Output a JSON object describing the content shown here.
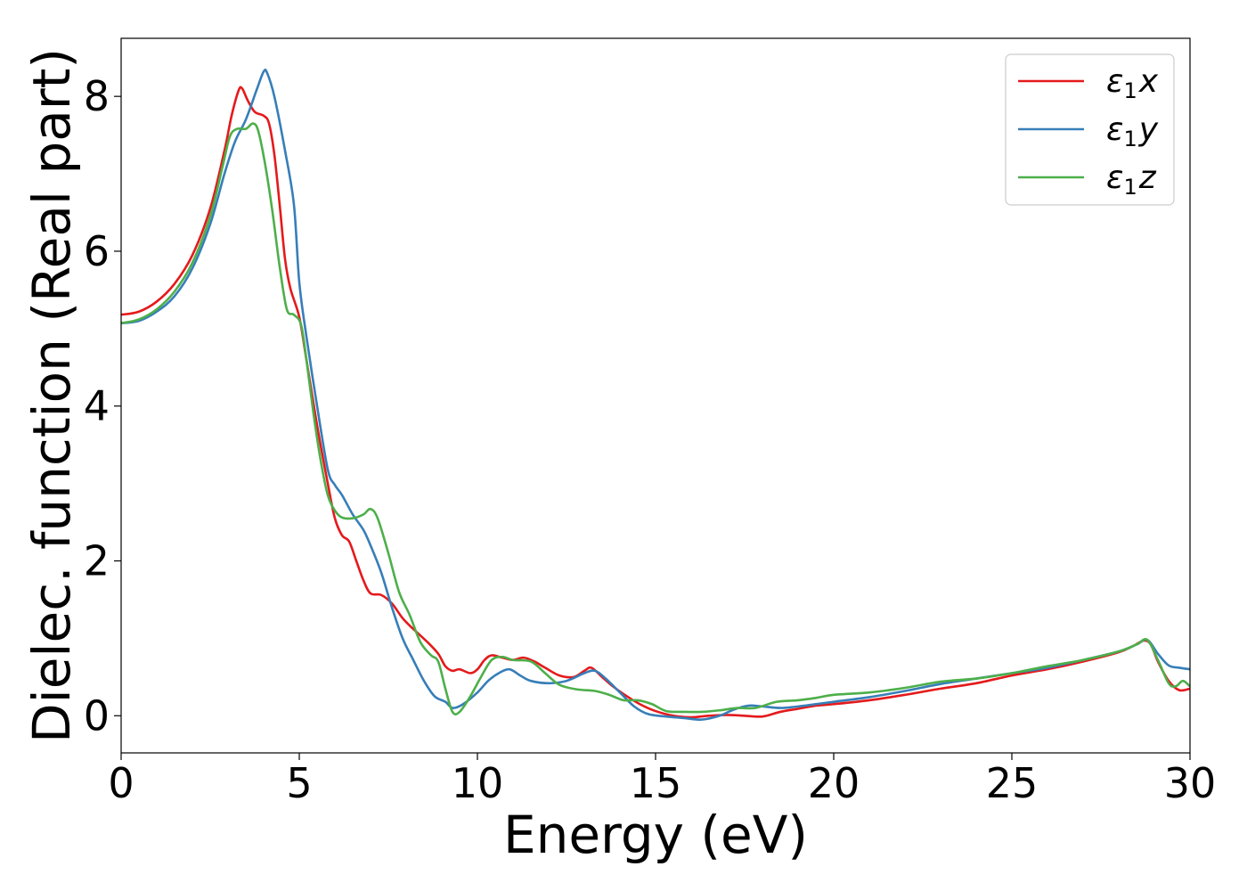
{
  "chart_data": {
    "type": "line",
    "title": "",
    "xlabel": "Energy (eV)",
    "ylabel": "Dielec. function (Real part)",
    "xlim": [
      0,
      30
    ],
    "ylim": [
      -0.48,
      8.75
    ],
    "xticks": [
      0,
      5,
      10,
      15,
      20,
      25,
      30
    ],
    "xtick_labels": [
      "0",
      "5",
      "10",
      "15",
      "20",
      "25",
      "30"
    ],
    "yticks": [
      0,
      2,
      4,
      6,
      8
    ],
    "ytick_labels": [
      "0",
      "2",
      "4",
      "6",
      "8"
    ],
    "grid": false,
    "legend_position": "top-right",
    "series": [
      {
        "name": "ε₁x",
        "legend_base": "ε",
        "legend_sub": "1",
        "legend_var": "x",
        "color": "#e41a1c",
        "points": [
          [
            0,
            5.18
          ],
          [
            0.5,
            5.22
          ],
          [
            1,
            5.35
          ],
          [
            1.5,
            5.58
          ],
          [
            2,
            5.95
          ],
          [
            2.5,
            6.55
          ],
          [
            2.9,
            7.3
          ],
          [
            3.1,
            7.75
          ],
          [
            3.3,
            8.08
          ],
          [
            3.4,
            8.1
          ],
          [
            3.55,
            7.95
          ],
          [
            3.75,
            7.8
          ],
          [
            4,
            7.75
          ],
          [
            4.15,
            7.65
          ],
          [
            4.3,
            7.25
          ],
          [
            4.45,
            6.6
          ],
          [
            4.6,
            5.9
          ],
          [
            4.75,
            5.52
          ],
          [
            5,
            5.15
          ],
          [
            5.2,
            4.6
          ],
          [
            5.5,
            3.75
          ],
          [
            5.8,
            3.0
          ],
          [
            6,
            2.55
          ],
          [
            6.2,
            2.33
          ],
          [
            6.4,
            2.25
          ],
          [
            6.6,
            2.0
          ],
          [
            6.8,
            1.75
          ],
          [
            7,
            1.58
          ],
          [
            7.3,
            1.56
          ],
          [
            7.6,
            1.45
          ],
          [
            7.9,
            1.26
          ],
          [
            8.2,
            1.12
          ],
          [
            8.6,
            0.95
          ],
          [
            8.9,
            0.8
          ],
          [
            9.1,
            0.64
          ],
          [
            9.3,
            0.58
          ],
          [
            9.5,
            0.6
          ],
          [
            9.8,
            0.55
          ],
          [
            10,
            0.6
          ],
          [
            10.2,
            0.72
          ],
          [
            10.4,
            0.78
          ],
          [
            10.7,
            0.75
          ],
          [
            11,
            0.72
          ],
          [
            11.3,
            0.75
          ],
          [
            11.6,
            0.7
          ],
          [
            11.9,
            0.62
          ],
          [
            12.3,
            0.52
          ],
          [
            12.7,
            0.5
          ],
          [
            13,
            0.58
          ],
          [
            13.2,
            0.62
          ],
          [
            13.5,
            0.5
          ],
          [
            13.8,
            0.38
          ],
          [
            14.2,
            0.25
          ],
          [
            14.6,
            0.14
          ],
          [
            15,
            0.06
          ],
          [
            15.5,
            0.0
          ],
          [
            16,
            -0.02
          ],
          [
            16.5,
            0.0
          ],
          [
            17,
            0.01
          ],
          [
            17.5,
            0.0
          ],
          [
            18,
            -0.01
          ],
          [
            18.5,
            0.05
          ],
          [
            19,
            0.09
          ],
          [
            19.5,
            0.13
          ],
          [
            20,
            0.15
          ],
          [
            21,
            0.2
          ],
          [
            22,
            0.27
          ],
          [
            23,
            0.35
          ],
          [
            24,
            0.42
          ],
          [
            25,
            0.52
          ],
          [
            26,
            0.6
          ],
          [
            27,
            0.7
          ],
          [
            28,
            0.82
          ],
          [
            28.4,
            0.9
          ],
          [
            28.7,
            0.97
          ],
          [
            28.9,
            0.92
          ],
          [
            29.1,
            0.7
          ],
          [
            29.4,
            0.45
          ],
          [
            29.7,
            0.33
          ],
          [
            30,
            0.35
          ]
        ]
      },
      {
        "name": "ε₁y",
        "legend_base": "ε",
        "legend_sub": "1",
        "legend_var": "y",
        "color": "#377eb8",
        "points": [
          [
            0,
            5.07
          ],
          [
            0.5,
            5.1
          ],
          [
            1,
            5.22
          ],
          [
            1.5,
            5.42
          ],
          [
            2,
            5.78
          ],
          [
            2.5,
            6.35
          ],
          [
            2.9,
            7.0
          ],
          [
            3.2,
            7.42
          ],
          [
            3.5,
            7.7
          ],
          [
            3.8,
            8.08
          ],
          [
            4.0,
            8.32
          ],
          [
            4.1,
            8.3
          ],
          [
            4.3,
            8.0
          ],
          [
            4.6,
            7.3
          ],
          [
            4.85,
            6.6
          ],
          [
            5,
            5.6
          ],
          [
            5.2,
            4.9
          ],
          [
            5.5,
            4.0
          ],
          [
            5.8,
            3.18
          ],
          [
            6,
            2.98
          ],
          [
            6.2,
            2.85
          ],
          [
            6.5,
            2.6
          ],
          [
            6.8,
            2.4
          ],
          [
            7,
            2.2
          ],
          [
            7.3,
            1.85
          ],
          [
            7.6,
            1.4
          ],
          [
            7.9,
            1.0
          ],
          [
            8.2,
            0.72
          ],
          [
            8.5,
            0.45
          ],
          [
            8.8,
            0.25
          ],
          [
            9.1,
            0.18
          ],
          [
            9.3,
            0.1
          ],
          [
            9.6,
            0.15
          ],
          [
            10,
            0.3
          ],
          [
            10.3,
            0.45
          ],
          [
            10.6,
            0.55
          ],
          [
            10.9,
            0.6
          ],
          [
            11.2,
            0.52
          ],
          [
            11.5,
            0.45
          ],
          [
            12,
            0.42
          ],
          [
            12.5,
            0.45
          ],
          [
            13,
            0.55
          ],
          [
            13.3,
            0.58
          ],
          [
            13.6,
            0.48
          ],
          [
            14,
            0.3
          ],
          [
            14.4,
            0.12
          ],
          [
            14.8,
            0.02
          ],
          [
            15.3,
            -0.01
          ],
          [
            15.8,
            -0.03
          ],
          [
            16.3,
            -0.05
          ],
          [
            16.8,
            0.0
          ],
          [
            17.2,
            0.08
          ],
          [
            17.6,
            0.13
          ],
          [
            18,
            0.12
          ],
          [
            18.5,
            0.1
          ],
          [
            19,
            0.12
          ],
          [
            19.5,
            0.15
          ],
          [
            20,
            0.18
          ],
          [
            21,
            0.24
          ],
          [
            22,
            0.32
          ],
          [
            23,
            0.41
          ],
          [
            24,
            0.48
          ],
          [
            25,
            0.55
          ],
          [
            26,
            0.62
          ],
          [
            27,
            0.72
          ],
          [
            28,
            0.83
          ],
          [
            28.5,
            0.92
          ],
          [
            28.8,
            0.98
          ],
          [
            29.1,
            0.8
          ],
          [
            29.4,
            0.65
          ],
          [
            29.7,
            0.62
          ],
          [
            30,
            0.6
          ]
        ]
      },
      {
        "name": "ε₁z",
        "legend_base": "ε",
        "legend_sub": "1",
        "legend_var": "z",
        "color": "#4daf4a",
        "points": [
          [
            0,
            5.07
          ],
          [
            0.5,
            5.12
          ],
          [
            1,
            5.25
          ],
          [
            1.5,
            5.48
          ],
          [
            2,
            5.85
          ],
          [
            2.5,
            6.45
          ],
          [
            2.85,
            7.1
          ],
          [
            3.05,
            7.48
          ],
          [
            3.25,
            7.58
          ],
          [
            3.5,
            7.58
          ],
          [
            3.7,
            7.65
          ],
          [
            3.85,
            7.55
          ],
          [
            4.05,
            7.1
          ],
          [
            4.25,
            6.5
          ],
          [
            4.45,
            5.8
          ],
          [
            4.65,
            5.25
          ],
          [
            4.85,
            5.18
          ],
          [
            5.05,
            5.05
          ],
          [
            5.2,
            4.6
          ],
          [
            5.4,
            3.9
          ],
          [
            5.6,
            3.3
          ],
          [
            5.8,
            2.85
          ],
          [
            6.0,
            2.65
          ],
          [
            6.2,
            2.56
          ],
          [
            6.5,
            2.55
          ],
          [
            6.8,
            2.6
          ],
          [
            7,
            2.67
          ],
          [
            7.2,
            2.55
          ],
          [
            7.5,
            2.1
          ],
          [
            7.8,
            1.6
          ],
          [
            8.1,
            1.3
          ],
          [
            8.4,
            0.95
          ],
          [
            8.7,
            0.78
          ],
          [
            8.9,
            0.7
          ],
          [
            9.1,
            0.35
          ],
          [
            9.3,
            0.05
          ],
          [
            9.5,
            0.05
          ],
          [
            9.8,
            0.25
          ],
          [
            10.1,
            0.5
          ],
          [
            10.4,
            0.72
          ],
          [
            10.7,
            0.76
          ],
          [
            11,
            0.72
          ],
          [
            11.5,
            0.7
          ],
          [
            11.9,
            0.55
          ],
          [
            12.3,
            0.4
          ],
          [
            12.8,
            0.34
          ],
          [
            13.3,
            0.32
          ],
          [
            13.7,
            0.27
          ],
          [
            14.1,
            0.2
          ],
          [
            14.5,
            0.2
          ],
          [
            14.9,
            0.15
          ],
          [
            15.3,
            0.06
          ],
          [
            15.8,
            0.05
          ],
          [
            16.3,
            0.05
          ],
          [
            16.8,
            0.07
          ],
          [
            17.3,
            0.1
          ],
          [
            17.8,
            0.1
          ],
          [
            18.4,
            0.18
          ],
          [
            19,
            0.2
          ],
          [
            19.5,
            0.23
          ],
          [
            20,
            0.27
          ],
          [
            21,
            0.3
          ],
          [
            22,
            0.36
          ],
          [
            23,
            0.44
          ],
          [
            24,
            0.48
          ],
          [
            25,
            0.55
          ],
          [
            26,
            0.64
          ],
          [
            27,
            0.72
          ],
          [
            28,
            0.83
          ],
          [
            28.5,
            0.92
          ],
          [
            28.8,
            0.98
          ],
          [
            29.1,
            0.72
          ],
          [
            29.4,
            0.42
          ],
          [
            29.6,
            0.38
          ],
          [
            29.8,
            0.45
          ],
          [
            30,
            0.38
          ]
        ]
      }
    ]
  }
}
